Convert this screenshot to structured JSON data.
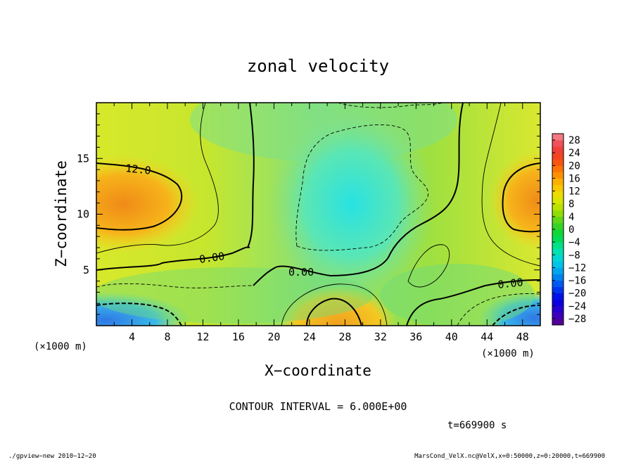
{
  "chart_data": {
    "type": "heatmap",
    "title": "zonal velocity",
    "xlabel": "X−coordinate",
    "ylabel": "Z−coordinate",
    "x_unit_note": "(×1000 m)",
    "y_unit_note": "(×1000 m)",
    "xlim": [
      0,
      50
    ],
    "ylim": [
      0,
      20
    ],
    "x_ticks": [
      4,
      8,
      12,
      16,
      20,
      24,
      28,
      32,
      36,
      40,
      44,
      48
    ],
    "y_ticks": [
      5,
      10,
      15
    ],
    "colorbar": {
      "min": -30,
      "max": 30,
      "step": 4,
      "tick_labels": [
        "28",
        "24",
        "20",
        "16",
        "12",
        "8",
        "4",
        "0",
        "−4",
        "−8",
        "−12",
        "−16",
        "−20",
        "−24",
        "−28"
      ]
    },
    "contour_labels": [
      "12.0",
      "0.00",
      "0.00",
      "0.00"
    ],
    "contour_interval_text": "CONTOUR INTERVAL = 6.000E+00",
    "time_text": "t=669900 s",
    "footer_left": "./gpview−new  2010−12−20",
    "footer_right": "MarsCond_VelX.nc@VelX,x=0:50000,z=0:20000,t=669900"
  }
}
